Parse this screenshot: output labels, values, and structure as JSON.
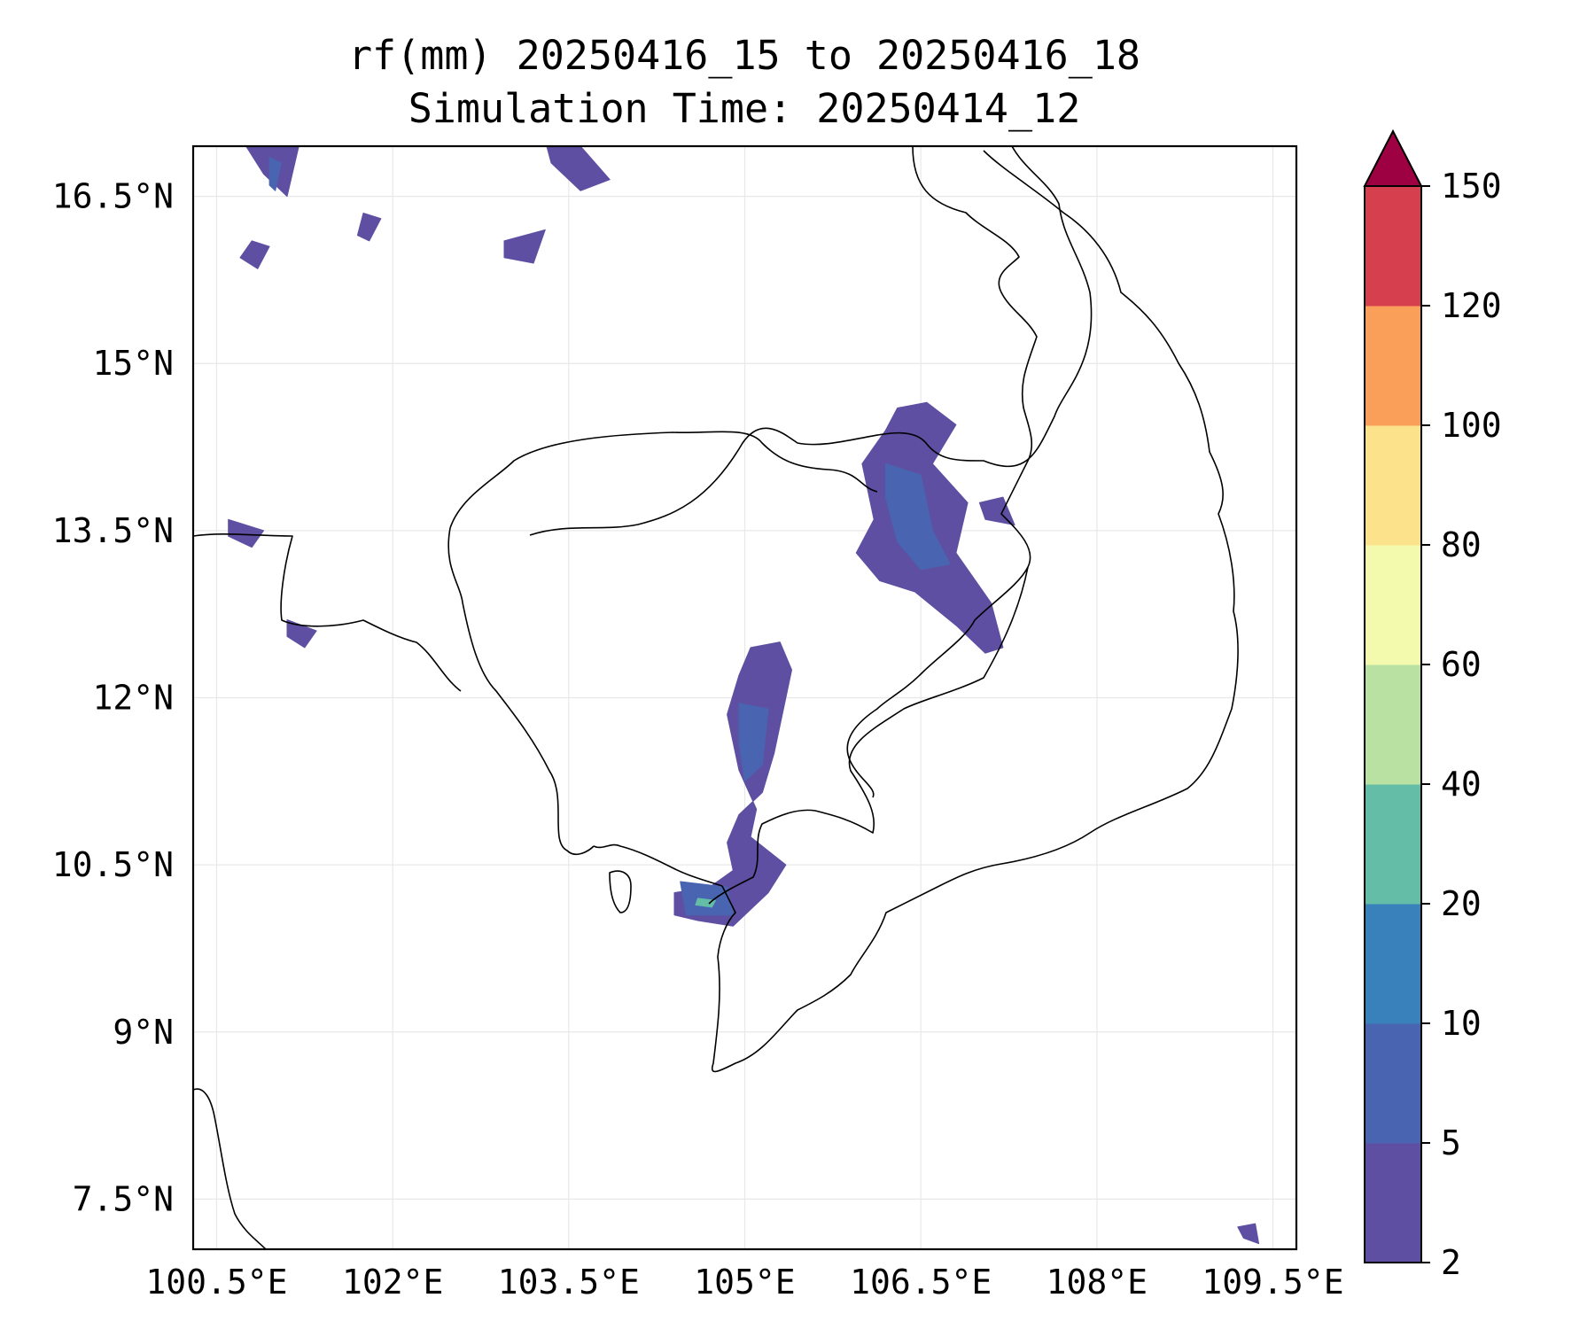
{
  "title": {
    "line1": "rf(mm) 20250416_15 to 20250416_18",
    "line2": "Simulation Time: 20250414_12"
  },
  "map": {
    "lon_range": [
      100.3,
      109.7
    ],
    "lat_range": [
      7.05,
      16.95
    ],
    "lon_ticks": [
      {
        "value": 100.5,
        "label": "100.5°E"
      },
      {
        "value": 102,
        "label": "102°E"
      },
      {
        "value": 103.5,
        "label": "103.5°E"
      },
      {
        "value": 105,
        "label": "105°E"
      },
      {
        "value": 106.5,
        "label": "106.5°E"
      },
      {
        "value": 108,
        "label": "108°E"
      },
      {
        "value": 109.5,
        "label": "109.5°E"
      }
    ],
    "lat_ticks": [
      {
        "value": 16.5,
        "label": "16.5°N"
      },
      {
        "value": 15,
        "label": "15°N"
      },
      {
        "value": 13.5,
        "label": "13.5°N"
      },
      {
        "value": 12,
        "label": "12°N"
      },
      {
        "value": 10.5,
        "label": "10.5°N"
      },
      {
        "value": 9,
        "label": "9°N"
      },
      {
        "value": 7.5,
        "label": "7.5°N"
      }
    ],
    "rain_areas": [
      {
        "name": "northeast-cambodia-band",
        "class_index": 0,
        "points": [
          [
            106.3,
            14.6
          ],
          [
            106.55,
            14.65
          ],
          [
            106.8,
            14.45
          ],
          [
            106.6,
            14.1
          ],
          [
            106.9,
            13.75
          ],
          [
            106.8,
            13.3
          ],
          [
            107.1,
            12.85
          ],
          [
            107.2,
            12.45
          ],
          [
            107.05,
            12.4
          ],
          [
            106.8,
            12.65
          ],
          [
            106.45,
            12.95
          ],
          [
            106.15,
            13.05
          ],
          [
            105.95,
            13.3
          ],
          [
            106.1,
            13.6
          ],
          [
            106.0,
            14.1
          ],
          [
            106.2,
            14.4
          ]
        ]
      },
      {
        "name": "northeast-cambodia-core",
        "class_index": 1,
        "points": [
          [
            106.2,
            14.1
          ],
          [
            106.5,
            14.0
          ],
          [
            106.6,
            13.5
          ],
          [
            106.75,
            13.2
          ],
          [
            106.5,
            13.15
          ],
          [
            106.3,
            13.4
          ],
          [
            106.2,
            13.8
          ]
        ]
      },
      {
        "name": "laos-spot",
        "class_index": 0,
        "points": [
          [
            107.0,
            13.75
          ],
          [
            107.2,
            13.8
          ],
          [
            107.3,
            13.55
          ],
          [
            107.05,
            13.6
          ]
        ]
      },
      {
        "name": "central-cambodia-band",
        "class_index": 0,
        "points": [
          [
            105.05,
            12.45
          ],
          [
            105.3,
            12.5
          ],
          [
            105.4,
            12.25
          ],
          [
            105.25,
            11.5
          ],
          [
            105.15,
            11.15
          ],
          [
            104.95,
            10.95
          ],
          [
            104.85,
            10.7
          ],
          [
            104.9,
            10.45
          ],
          [
            104.7,
            10.3
          ],
          [
            104.4,
            10.25
          ],
          [
            104.4,
            10.05
          ],
          [
            104.6,
            10.0
          ],
          [
            104.9,
            9.95
          ],
          [
            105.2,
            10.25
          ],
          [
            105.35,
            10.5
          ],
          [
            105.05,
            10.75
          ],
          [
            105.1,
            11.0
          ],
          [
            104.95,
            11.35
          ],
          [
            104.85,
            11.85
          ],
          [
            104.95,
            12.2
          ]
        ]
      },
      {
        "name": "central-cambodia-core",
        "class_index": 1,
        "points": [
          [
            104.95,
            11.95
          ],
          [
            105.2,
            11.9
          ],
          [
            105.15,
            11.4
          ],
          [
            105.0,
            11.25
          ],
          [
            104.95,
            11.6
          ]
        ]
      },
      {
        "name": "kampot-core",
        "class_index": 1,
        "points": [
          [
            104.45,
            10.35
          ],
          [
            104.85,
            10.3
          ],
          [
            104.9,
            10.05
          ],
          [
            104.5,
            10.05
          ]
        ]
      },
      {
        "name": "kampot-max",
        "class_index": 3,
        "points": [
          [
            104.6,
            10.2
          ],
          [
            104.75,
            10.18
          ],
          [
            104.72,
            10.12
          ],
          [
            104.58,
            10.14
          ]
        ]
      },
      {
        "name": "north-thai-1",
        "class_index": 0,
        "points": [
          [
            103.3,
            17.0
          ],
          [
            103.6,
            16.95
          ],
          [
            103.85,
            16.65
          ],
          [
            103.6,
            16.55
          ],
          [
            103.35,
            16.8
          ]
        ]
      },
      {
        "name": "north-thai-2",
        "class_index": 0,
        "points": [
          [
            102.95,
            16.1
          ],
          [
            103.3,
            16.2
          ],
          [
            103.2,
            15.9
          ],
          [
            102.95,
            15.95
          ]
        ]
      },
      {
        "name": "north-thai-3",
        "class_index": 0,
        "points": [
          [
            100.75,
            16.95
          ],
          [
            101.2,
            16.95
          ],
          [
            101.1,
            16.5
          ],
          [
            100.9,
            16.7
          ]
        ]
      },
      {
        "name": "north-thai-core",
        "class_index": 1,
        "points": [
          [
            100.95,
            16.85
          ],
          [
            101.05,
            16.8
          ],
          [
            101.0,
            16.55
          ],
          [
            100.95,
            16.6
          ]
        ]
      },
      {
        "name": "north-thai-4",
        "class_index": 0,
        "points": [
          [
            100.8,
            16.1
          ],
          [
            100.95,
            16.05
          ],
          [
            100.85,
            15.85
          ],
          [
            100.7,
            15.95
          ]
        ]
      },
      {
        "name": "north-thai-5",
        "class_index": 0,
        "points": [
          [
            101.75,
            16.35
          ],
          [
            101.9,
            16.3
          ],
          [
            101.8,
            16.1
          ],
          [
            101.7,
            16.15
          ]
        ]
      },
      {
        "name": "gulf-spot-1",
        "class_index": 0,
        "points": [
          [
            100.6,
            13.6
          ],
          [
            100.9,
            13.5
          ],
          [
            100.8,
            13.35
          ],
          [
            100.6,
            13.45
          ]
        ]
      },
      {
        "name": "gulf-spot-2",
        "class_index": 0,
        "points": [
          [
            101.1,
            12.7
          ],
          [
            101.35,
            12.6
          ],
          [
            101.25,
            12.45
          ],
          [
            101.1,
            12.55
          ]
        ]
      },
      {
        "name": "south-sea-spot",
        "class_index": 0,
        "points": [
          [
            109.2,
            7.25
          ],
          [
            109.35,
            7.28
          ],
          [
            109.38,
            7.1
          ],
          [
            109.25,
            7.15
          ]
        ]
      }
    ]
  },
  "colorbar": {
    "levels": [
      "2",
      "5",
      "10",
      "20",
      "40",
      "60",
      "80",
      "100",
      "120",
      "150"
    ],
    "colors": [
      "#5e4fa2",
      "#4964b0",
      "#3881ba",
      "#63bda7",
      "#b9e1a1",
      "#f3f9ad",
      "#fce28a",
      "#fa9f5a",
      "#d63f4e"
    ],
    "extend_color": "#9e0142"
  },
  "styles": {
    "coastline": "#000000",
    "gridline": "#e8e8e8"
  }
}
